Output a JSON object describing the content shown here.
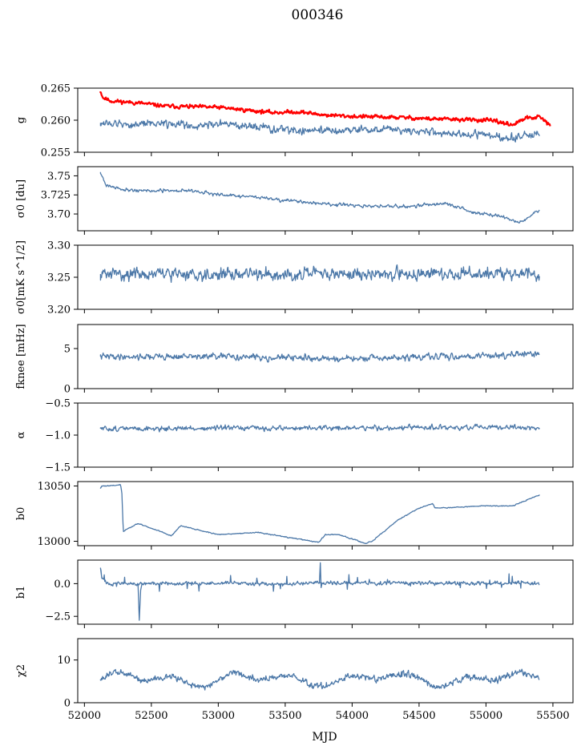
{
  "figure": {
    "title": "000346",
    "xlabel": "MJD",
    "colors": {
      "main": "#4c78a8",
      "highlight": "#ff0000",
      "axis": "#000000"
    }
  },
  "chart_data": {
    "type": "line",
    "x_range": [
      51950,
      55650
    ],
    "x_ticks": [
      52000,
      52500,
      53000,
      53500,
      54000,
      54500,
      55000,
      55500
    ],
    "x_tick_labels": [
      "52000",
      "52500",
      "53000",
      "53500",
      "54000",
      "54500",
      "55000",
      "55500"
    ],
    "panels": [
      {
        "ylabel": "g",
        "ylim": [
          0.255,
          0.265
        ],
        "yticks": [
          0.255,
          0.26,
          0.265
        ],
        "ytick_labels": [
          "0.255",
          "0.260",
          "0.265"
        ],
        "series": [
          {
            "color": "#ff0000",
            "width": 2.2,
            "noise": 0.00035,
            "seed": 11,
            "x": [
              52120,
              52140,
              52200,
              52400,
              52600,
              52800,
              53000,
              53200,
              53400,
              53600,
              53800,
              54000,
              54200,
              54400,
              54600,
              54800,
              55000,
              55100,
              55200,
              55300,
              55400,
              55480
            ],
            "y": [
              0.2645,
              0.2635,
              0.263,
              0.2627,
              0.2622,
              0.2621,
              0.262,
              0.2616,
              0.2612,
              0.2613,
              0.2608,
              0.2606,
              0.2605,
              0.2604,
              0.2602,
              0.2601,
              0.26,
              0.2597,
              0.2593,
              0.2603,
              0.2605,
              0.2592
            ]
          },
          {
            "color": "#4c78a8",
            "width": 1.3,
            "noise": 0.0007,
            "seed": 12,
            "x": [
              52120,
              52300,
              52600,
              52800,
              53000,
              53300,
              53500,
              53800,
              54000,
              54300,
              54500,
              54800,
              55000,
              55200,
              55400
            ],
            "y": [
              0.2596,
              0.2593,
              0.2596,
              0.2591,
              0.2595,
              0.2588,
              0.2585,
              0.2583,
              0.2586,
              0.2585,
              0.2583,
              0.2578,
              0.2578,
              0.2572,
              0.258
            ]
          }
        ]
      },
      {
        "ylabel": "σ0 [du]",
        "ylim": [
          3.678,
          3.762
        ],
        "yticks": [
          3.7,
          3.725,
          3.75
        ],
        "ytick_labels": [
          "3.70",
          "3.725",
          "3.75"
        ],
        "series": [
          {
            "color": "#4c78a8",
            "width": 1.3,
            "noise": 0.0025,
            "seed": 21,
            "x": [
              52120,
              52160,
              52300,
              52500,
              52800,
              53000,
              53300,
              53600,
              53900,
              54100,
              54400,
              54700,
              54900,
              55100,
              55250,
              55400
            ],
            "y": [
              3.755,
              3.738,
              3.732,
              3.73,
              3.731,
              3.725,
              3.722,
              3.716,
              3.712,
              3.71,
              3.71,
              3.714,
              3.702,
              3.698,
              3.688,
              3.705
            ]
          }
        ]
      },
      {
        "ylabel": "σ0[mK s^1/2]",
        "ylim": [
          3.2,
          3.3
        ],
        "yticks": [
          3.2,
          3.25,
          3.3
        ],
        "ytick_labels": [
          "3.20",
          "3.25",
          "3.30"
        ],
        "series": [
          {
            "color": "#4c78a8",
            "width": 1.3,
            "noise": 0.011,
            "seed": 31,
            "x": [
              52120,
              55400
            ],
            "y": [
              3.255,
              3.255
            ]
          }
        ]
      },
      {
        "ylabel": "fknee [mHz]",
        "ylim": [
          0,
          8
        ],
        "yticks": [
          0,
          5
        ],
        "ytick_labels": [
          "0",
          "5"
        ],
        "series": [
          {
            "color": "#4c78a8",
            "width": 1.3,
            "noise": 0.45,
            "seed": 41,
            "x": [
              52120,
              53000,
              54000,
              55400
            ],
            "y": [
              4.0,
              4.0,
              3.7,
              4.3
            ]
          }
        ]
      },
      {
        "ylabel": "α",
        "ylim": [
          -1.5,
          -0.5
        ],
        "yticks": [
          -1.5,
          -1.0,
          -0.5
        ],
        "ytick_labels": [
          "−1.5",
          "−1.0",
          "−0.5"
        ],
        "series": [
          {
            "color": "#4c78a8",
            "width": 1.3,
            "noise": 0.045,
            "seed": 51,
            "x": [
              52120,
              55400
            ],
            "y": [
              -0.9,
              -0.88
            ]
          }
        ]
      },
      {
        "ylabel": "b0",
        "ylim": [
          12996,
          13054
        ],
        "yticks": [
          13000,
          13050
        ],
        "ytick_labels": [
          "13000",
          "13050"
        ],
        "series": [
          {
            "color": "#4c78a8",
            "width": 1.3,
            "noise": 0.5,
            "seed": 61,
            "x": [
              52120,
              52130,
              52180,
              52270,
              52280,
              52290,
              52400,
              52450,
              52650,
              52720,
              53000,
              53300,
              53550,
              53750,
              53800,
              53900,
              54100,
              54150,
              54350,
              54500,
              54600,
              54620,
              55000,
              55200,
              55400
            ],
            "y": [
              13048,
              13050,
              13050,
              13051,
              13043,
              13009,
              13016,
              13014,
              13005,
              13014,
              13006,
              13008,
              13003,
              12999,
              13006,
              13006,
              12998,
              13000,
              13020,
              13030,
              13034,
              13030,
              13032,
              13032,
              13042
            ]
          }
        ]
      },
      {
        "ylabel": "b1",
        "ylim": [
          -3.1,
          1.8
        ],
        "yticks": [
          -2.5,
          0.0
        ],
        "ytick_labels": [
          "−2.5",
          "0.0"
        ],
        "series": [
          {
            "color": "#4c78a8",
            "width": 1.3,
            "noise": 0.16,
            "seed": 71,
            "spikes": 0.04,
            "x": [
              52120,
              52130,
              52180,
              55400
            ],
            "y": [
              1.2,
              0.4,
              0.0,
              0.05
            ]
          },
          {
            "color": "#4c78a8",
            "width": 1.3,
            "noise": 0,
            "x": [
              52400,
              52410,
              52420,
              52430
            ],
            "y": [
              0.0,
              -2.8,
              -0.5,
              0.0
            ]
          },
          {
            "color": "#4c78a8",
            "width": 1.3,
            "noise": 0,
            "x": [
              53755,
              53762,
              53768,
              53775
            ],
            "y": [
              0.0,
              1.6,
              -0.3,
              0.0
            ]
          }
        ]
      },
      {
        "ylabel": "χ2",
        "ylim": [
          0,
          15
        ],
        "yticks": [
          0,
          10
        ],
        "ytick_labels": [
          "0",
          "10"
        ],
        "series": [
          {
            "color": "#4c78a8",
            "width": 1.3,
            "noise": 0.9,
            "seed": 81,
            "wave": 1.8,
            "x": [
              52120,
              55400
            ],
            "y": [
              5.5,
              5.5
            ]
          }
        ]
      }
    ]
  }
}
